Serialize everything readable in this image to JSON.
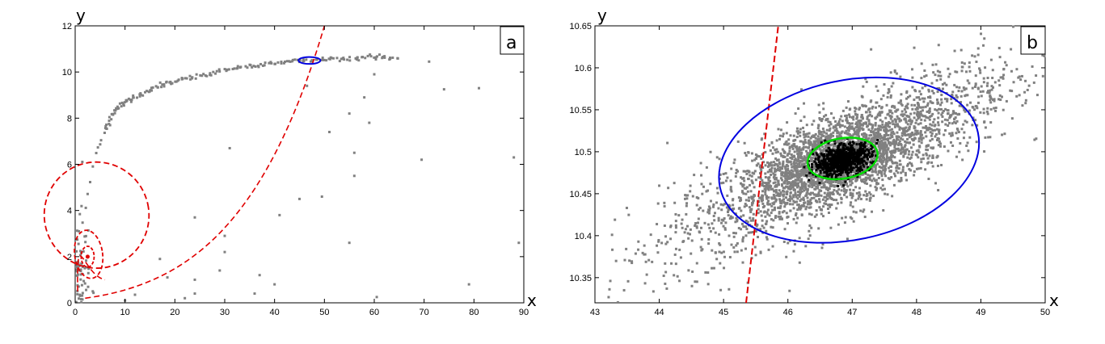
{
  "chart_data": [
    {
      "type": "scatter",
      "panel_label": "a",
      "xlabel": "x",
      "ylabel": "y",
      "xlim": [
        0,
        90
      ],
      "ylim": [
        0,
        12
      ],
      "xticks": [
        0,
        10,
        20,
        30,
        40,
        50,
        60,
        70,
        80,
        90
      ],
      "yticks": [
        0,
        2,
        4,
        6,
        8,
        10,
        12
      ],
      "grid": false,
      "point_color": "#808080",
      "curve_color": "#e00000",
      "ellipse_color": "#0000e0",
      "attractor_arc": [
        [
          1,
          0.3
        ],
        [
          2,
          3.5
        ],
        [
          4,
          6.5
        ],
        [
          6,
          7.5
        ],
        [
          8,
          8.3
        ],
        [
          10,
          8.7
        ],
        [
          13,
          9.0
        ],
        [
          17,
          9.4
        ],
        [
          20,
          9.6
        ],
        [
          25,
          9.8
        ],
        [
          30,
          10.1
        ],
        [
          35,
          10.25
        ],
        [
          40,
          10.4
        ],
        [
          45,
          10.5
        ],
        [
          50,
          10.55
        ],
        [
          55,
          10.6
        ],
        [
          60,
          10.65
        ],
        [
          65,
          10.6
        ]
      ],
      "outliers": [
        [
          71,
          10.45
        ],
        [
          81,
          9.3
        ],
        [
          74,
          9.25
        ],
        [
          69.5,
          6.2
        ],
        [
          88,
          6.3
        ],
        [
          89,
          2.6
        ],
        [
          79,
          0.8
        ],
        [
          60.5,
          0.25
        ],
        [
          56,
          6.5
        ],
        [
          56,
          5.5
        ],
        [
          60,
          9.9
        ],
        [
          58,
          8.9
        ],
        [
          59,
          7.8
        ],
        [
          46.5,
          9.4
        ],
        [
          55,
          8.2
        ],
        [
          51,
          7.4
        ],
        [
          55,
          2.6
        ],
        [
          45,
          4.5
        ],
        [
          49.5,
          4.6
        ],
        [
          41,
          3.8
        ],
        [
          31,
          6.7
        ],
        [
          40,
          0.8
        ],
        [
          36,
          0.4
        ],
        [
          37,
          1.2
        ],
        [
          24,
          3.7
        ],
        [
          30,
          2.9
        ],
        [
          30,
          2.2
        ],
        [
          29,
          1.4
        ],
        [
          24,
          1.0
        ],
        [
          24,
          0.4
        ],
        [
          22,
          0.2
        ],
        [
          18.5,
          1.1
        ],
        [
          17,
          1.9
        ],
        [
          12,
          0.35
        ],
        [
          10,
          0.1
        ]
      ],
      "spiral_curve": [
        [
          0.3,
          0.1
        ],
        [
          0.3,
          4.8
        ],
        [
          1,
          3.8
        ],
        [
          3,
          3.0
        ],
        [
          4,
          2.0
        ],
        [
          3,
          1.2
        ],
        [
          2,
          1.6
        ],
        [
          2.5,
          2.2
        ],
        [
          3,
          2.0
        ]
      ],
      "separatrix": [
        [
          2,
          0.2
        ],
        [
          10,
          0.6
        ],
        [
          20,
          1.5
        ],
        [
          30,
          3.2
        ],
        [
          38,
          6.0
        ],
        [
          44,
          9.5
        ],
        [
          47,
          10.5
        ],
        [
          50,
          12.0
        ]
      ],
      "ellipse_blue": {
        "cx": 47,
        "cy": 10.5,
        "rx": 2.2,
        "ry": 0.15
      }
    },
    {
      "type": "scatter",
      "panel_label": "b",
      "xlabel": "x",
      "ylabel": "y",
      "xlim": [
        43,
        50
      ],
      "ylim": [
        10.32,
        10.65
      ],
      "xticks": [
        43,
        44,
        45,
        46,
        47,
        48,
        49,
        50
      ],
      "yticks": [
        10.35,
        10.4,
        10.45,
        10.5,
        10.55,
        10.6,
        10.65
      ],
      "grid": false,
      "point_color": "#808080",
      "core_color": "#000000",
      "line_color": "#e00000",
      "ellipse_blue_color": "#0000e0",
      "ellipse_green_color": "#00dd00",
      "cloud_center": [
        46.8,
        10.49
      ],
      "red_line": [
        [
          45.35,
          10.32
        ],
        [
          45.85,
          10.65
        ]
      ],
      "ellipse_blue": {
        "cx": 46.95,
        "cy": 10.49,
        "rx": 2.05,
        "ry": 0.095,
        "rotate_deg": -12
      },
      "ellipse_green": {
        "cx": 46.85,
        "cy": 10.492,
        "rx": 0.55,
        "ry": 0.024,
        "rotate_deg": -10
      }
    }
  ]
}
